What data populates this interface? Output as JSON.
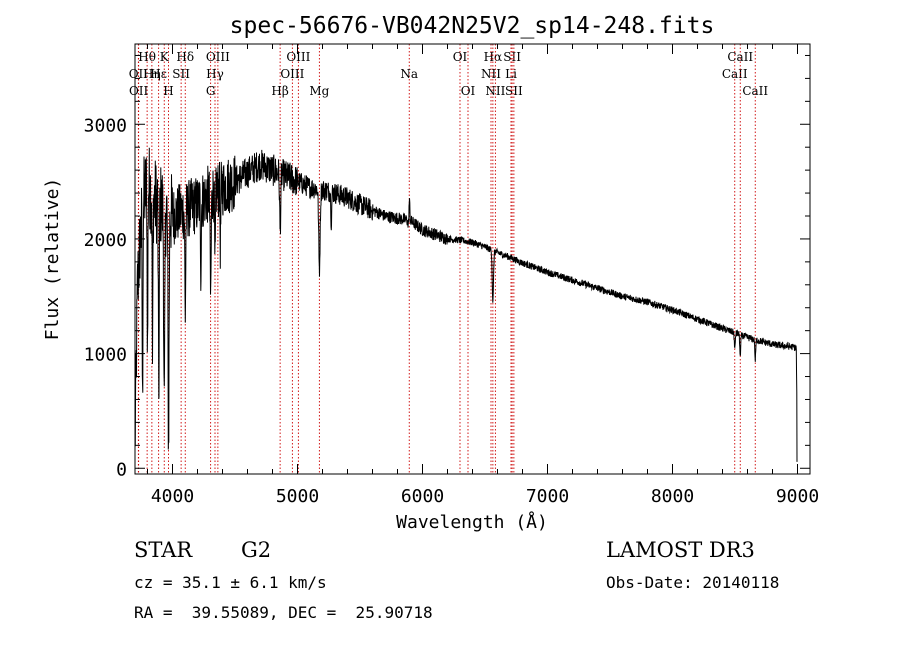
{
  "chart_data": {
    "type": "line",
    "title": "spec-56676-VB042N25V2_sp14-248.fits",
    "xlabel": "Wavelength (Å)",
    "ylabel": "Flux (relative)",
    "xlim": [
      3700,
      9100
    ],
    "ylim": [
      -50,
      3700
    ],
    "xticks": [
      4000,
      5000,
      6000,
      7000,
      8000,
      9000
    ],
    "yticks": [
      0,
      1000,
      2000,
      3000
    ],
    "xtick_labels": [
      "4000",
      "5000",
      "6000",
      "7000",
      "8000",
      "9000"
    ],
    "ytick_labels": [
      "0",
      "1000",
      "2000",
      "3000"
    ],
    "line_color": "#000000",
    "marker_color": "#cc0000",
    "continuum": [
      [
        3700,
        200
      ],
      [
        3720,
        1600
      ],
      [
        3760,
        2300
      ],
      [
        3800,
        2500
      ],
      [
        3850,
        2350
      ],
      [
        3900,
        2300
      ],
      [
        4000,
        2200
      ],
      [
        4100,
        2250
      ],
      [
        4200,
        2300
      ],
      [
        4300,
        2400
      ],
      [
        4400,
        2450
      ],
      [
        4500,
        2500
      ],
      [
        4600,
        2580
      ],
      [
        4700,
        2650
      ],
      [
        4800,
        2600
      ],
      [
        4900,
        2550
      ],
      [
        5000,
        2500
      ],
      [
        5100,
        2450
      ],
      [
        5200,
        2430
      ],
      [
        5300,
        2400
      ],
      [
        5400,
        2360
      ],
      [
        5500,
        2300
      ],
      [
        5600,
        2250
      ],
      [
        5700,
        2200
      ],
      [
        5800,
        2180
      ],
      [
        5900,
        2160
      ],
      [
        6000,
        2080
      ],
      [
        6100,
        2040
      ],
      [
        6200,
        2000
      ],
      [
        6300,
        1990
      ],
      [
        6400,
        1970
      ],
      [
        6500,
        1930
      ],
      [
        6600,
        1880
      ],
      [
        6700,
        1840
      ],
      [
        6800,
        1790
      ],
      [
        6900,
        1750
      ],
      [
        7000,
        1710
      ],
      [
        7200,
        1640
      ],
      [
        7400,
        1570
      ],
      [
        7600,
        1500
      ],
      [
        7800,
        1450
      ],
      [
        8000,
        1380
      ],
      [
        8200,
        1300
      ],
      [
        8400,
        1220
      ],
      [
        8600,
        1140
      ],
      [
        8800,
        1080
      ],
      [
        8950,
        1060
      ],
      [
        8990,
        1050
      ],
      [
        9000,
        50
      ]
    ],
    "absorption_lines": [
      {
        "w": 3760,
        "depth": 1800,
        "width": 4
      },
      {
        "w": 3800,
        "depth": 1500,
        "width": 4
      },
      {
        "w": 3840,
        "depth": 1500,
        "width": 4
      },
      {
        "w": 3890,
        "depth": 1700,
        "width": 5
      },
      {
        "w": 3934,
        "depth": 1800,
        "width": 6
      },
      {
        "w": 3968,
        "depth": 2000,
        "width": 6
      },
      {
        "w": 4102,
        "depth": 900,
        "width": 5
      },
      {
        "w": 4227,
        "depth": 600,
        "width": 4
      },
      {
        "w": 4305,
        "depth": 900,
        "width": 6
      },
      {
        "w": 4340,
        "depth": 700,
        "width": 5
      },
      {
        "w": 4383,
        "depth": 500,
        "width": 4
      },
      {
        "w": 4861,
        "depth": 500,
        "width": 6
      },
      {
        "w": 5175,
        "depth": 700,
        "width": 8
      },
      {
        "w": 5270,
        "depth": 250,
        "width": 5
      },
      {
        "w": 5890,
        "depth": 200,
        "width": 6
      },
      {
        "w": 6563,
        "depth": 450,
        "width": 7
      },
      {
        "w": 8498,
        "depth": 150,
        "width": 5
      },
      {
        "w": 8542,
        "depth": 200,
        "width": 5
      },
      {
        "w": 8662,
        "depth": 180,
        "width": 5
      }
    ],
    "spikes": [
      {
        "w": 5893,
        "height": 300,
        "width": 6
      }
    ],
    "line_markers": [
      {
        "label": "Hθ",
        "x": 3797,
        "row": 1
      },
      {
        "label": "OII",
        "x": 3727,
        "row": 2
      },
      {
        "label": "OII",
        "x": 3729,
        "row": 3
      },
      {
        "label": "Hη",
        "x": 3835,
        "row": 2
      },
      {
        "label": "Hε",
        "x": 3889,
        "row": 2
      },
      {
        "label": "K",
        "x": 3934,
        "row": 1
      },
      {
        "label": "H",
        "x": 3968,
        "row": 3
      },
      {
        "label": "Hδ",
        "x": 4102,
        "row": 1
      },
      {
        "label": "SII",
        "x": 4069,
        "row": 2
      },
      {
        "label": "Hγ",
        "x": 4340,
        "row": 2
      },
      {
        "label": "OIII",
        "x": 4363,
        "row": 1
      },
      {
        "label": "G",
        "x": 4305,
        "row": 3
      },
      {
        "label": "Hβ",
        "x": 4861,
        "row": 3
      },
      {
        "label": "OIII",
        "x": 4959,
        "row": 2
      },
      {
        "label": "OIII",
        "x": 5007,
        "row": 1
      },
      {
        "label": "Mg",
        "x": 5175,
        "row": 3
      },
      {
        "label": "Na",
        "x": 5894,
        "row": 2
      },
      {
        "label": "OI",
        "x": 6300,
        "row": 1
      },
      {
        "label": "OI",
        "x": 6364,
        "row": 3
      },
      {
        "label": "Hα",
        "x": 6563,
        "row": 1
      },
      {
        "label": "NII",
        "x": 6548,
        "row": 2
      },
      {
        "label": "NII",
        "x": 6583,
        "row": 3
      },
      {
        "label": "SII",
        "x": 6717,
        "row": 1
      },
      {
        "label": "SII",
        "x": 6731,
        "row": 3
      },
      {
        "label": "Li",
        "x": 6708,
        "row": 2
      },
      {
        "label": "CaII",
        "x": 8498,
        "row": 2
      },
      {
        "label": "CaII",
        "x": 8542,
        "row": 1
      },
      {
        "label": "CaII",
        "x": 8662,
        "row": 3
      }
    ]
  },
  "info": {
    "class": "STAR",
    "subclass": "G2",
    "survey": "LAMOST DR3",
    "redshift": "cz = 35.1 ± 6.1 km/s",
    "obs_date": "Obs-Date: 20140118",
    "coords": "RA =  39.55089, DEC =  25.90718"
  }
}
